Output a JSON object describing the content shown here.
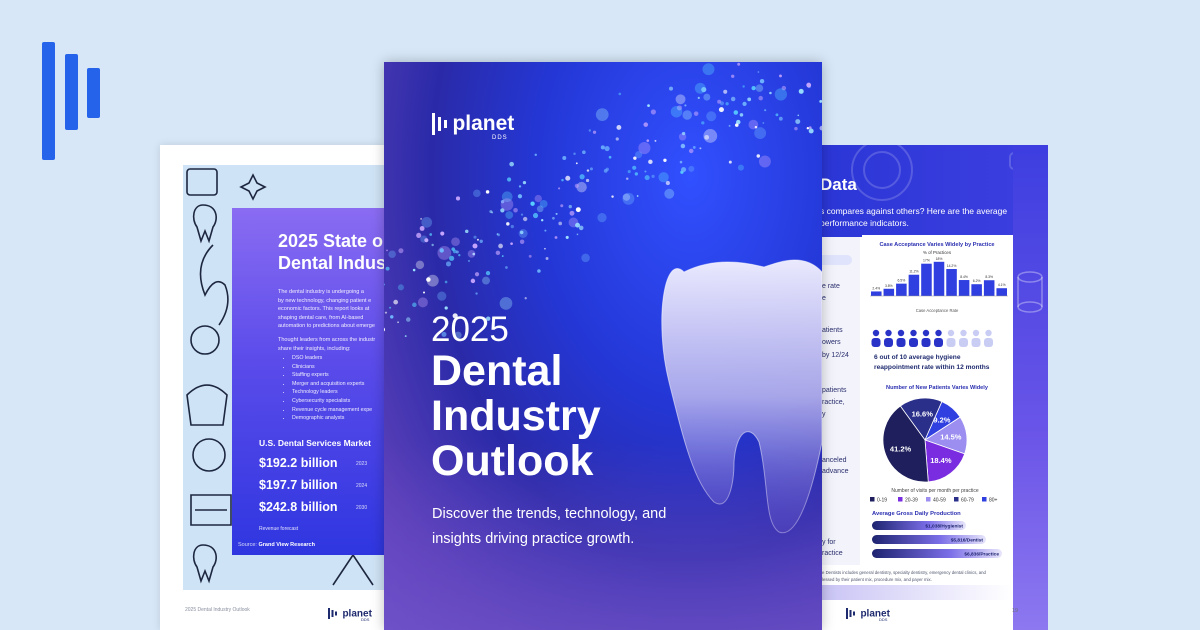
{
  "left_page": {
    "title_lines": [
      "2025 State o",
      "Dental Indus"
    ],
    "intro_lines": [
      "The dental industry is undergoing a",
      "by new technology, changing patient e",
      "economic factors. This report looks at",
      "shaping dental care, from AI-based",
      "automation to predictions about emerge"
    ],
    "thought_lines": [
      "Thought leaders from across the industr",
      "share their insights, including:"
    ],
    "list": [
      "DSO leaders",
      "Clinicians",
      "Staffing experts",
      "Merger and acquisition experts",
      "Technology leaders",
      "Cybersecurity specialists",
      "Revenue cycle management expe",
      "Demographic analysts"
    ],
    "market": {
      "title": "U.S. Dental Services Market",
      "rows": [
        {
          "amount": "$192.2 billion",
          "year": "2023"
        },
        {
          "amount": "$197.7 billion",
          "year": "2024"
        },
        {
          "amount": "$242.8 billion",
          "year": "2030"
        }
      ],
      "note": "Revenue forecast"
    },
    "source_label": "Source:",
    "source": "Grand View Research",
    "footer": "2025 Dental Industry Outlook",
    "logo": "planet",
    "logo_sub": "DDS"
  },
  "cover": {
    "logo": "planet",
    "logo_sub": "DDS",
    "year": "2025",
    "title_lines": [
      "Dental",
      "Industry",
      "Outlook"
    ],
    "tagline": "Discover the trends, technology, and insights driving practice growth."
  },
  "right_page": {
    "title": "Data",
    "intro_lines": [
      "s compares against others? Here are the average",
      "performance indicators."
    ],
    "side_fragments": [
      "e rate",
      "e",
      "atients",
      "owers",
      "by 12/24",
      "patients",
      "ractice,",
      "y",
      "anceled",
      "advance",
      "y for",
      "ractice"
    ],
    "bar_chart": {
      "type": "bar",
      "title": "Case Acceptance Varies Widely by Practice",
      "subtitle": "% of Practices",
      "x_label": "Case Acceptance Rate",
      "values": [
        2.4,
        3.8,
        6.5,
        11.2,
        17,
        18,
        14.2,
        8.4,
        6.2,
        8.3,
        4.1
      ],
      "value_labels": [
        "2.4%",
        "3.8%",
        "6.5%",
        "11.2%",
        "17%",
        "18%",
        "14.2%",
        "8.4%",
        "6.2%",
        "8.3%",
        "4.1%"
      ],
      "ylim": [
        0,
        20
      ],
      "color": "#2f3fe0"
    },
    "hygiene_lines": [
      "6 out of 10 average hygiene",
      "reappointment rate within 12 months"
    ],
    "pie_chart": {
      "type": "pie",
      "title": "Number of New Patients Varies Widely",
      "x_label": "Number of visits per month per practice",
      "categories": [
        "0-19",
        "20-39",
        "40-59",
        "60-79",
        "80+"
      ],
      "values": [
        41.2,
        18.4,
        14.5,
        16.6,
        9.2
      ],
      "value_labels": [
        "41.2%",
        "18.4%",
        "14.5%",
        "16.6%",
        "9.2%"
      ],
      "colors": [
        "#1e1f5c",
        "#7a2de0",
        "#9b8ef0",
        "#2a2f8a",
        "#2f3fe0"
      ]
    },
    "production": {
      "title": "Average Gross Daily Production",
      "items": [
        "$1,038/Hygienist",
        "$5,816/Dentist",
        "$6,836/Practice"
      ]
    },
    "footnote_lines": [
      "e Dentists includes general dentistry, specialty dentistry, emergency dental clinics, and",
      "lessed by their patient mix, procedure mix, and payer mix."
    ],
    "logo": "planet",
    "logo_sub": "DDS",
    "page_number": "19"
  }
}
